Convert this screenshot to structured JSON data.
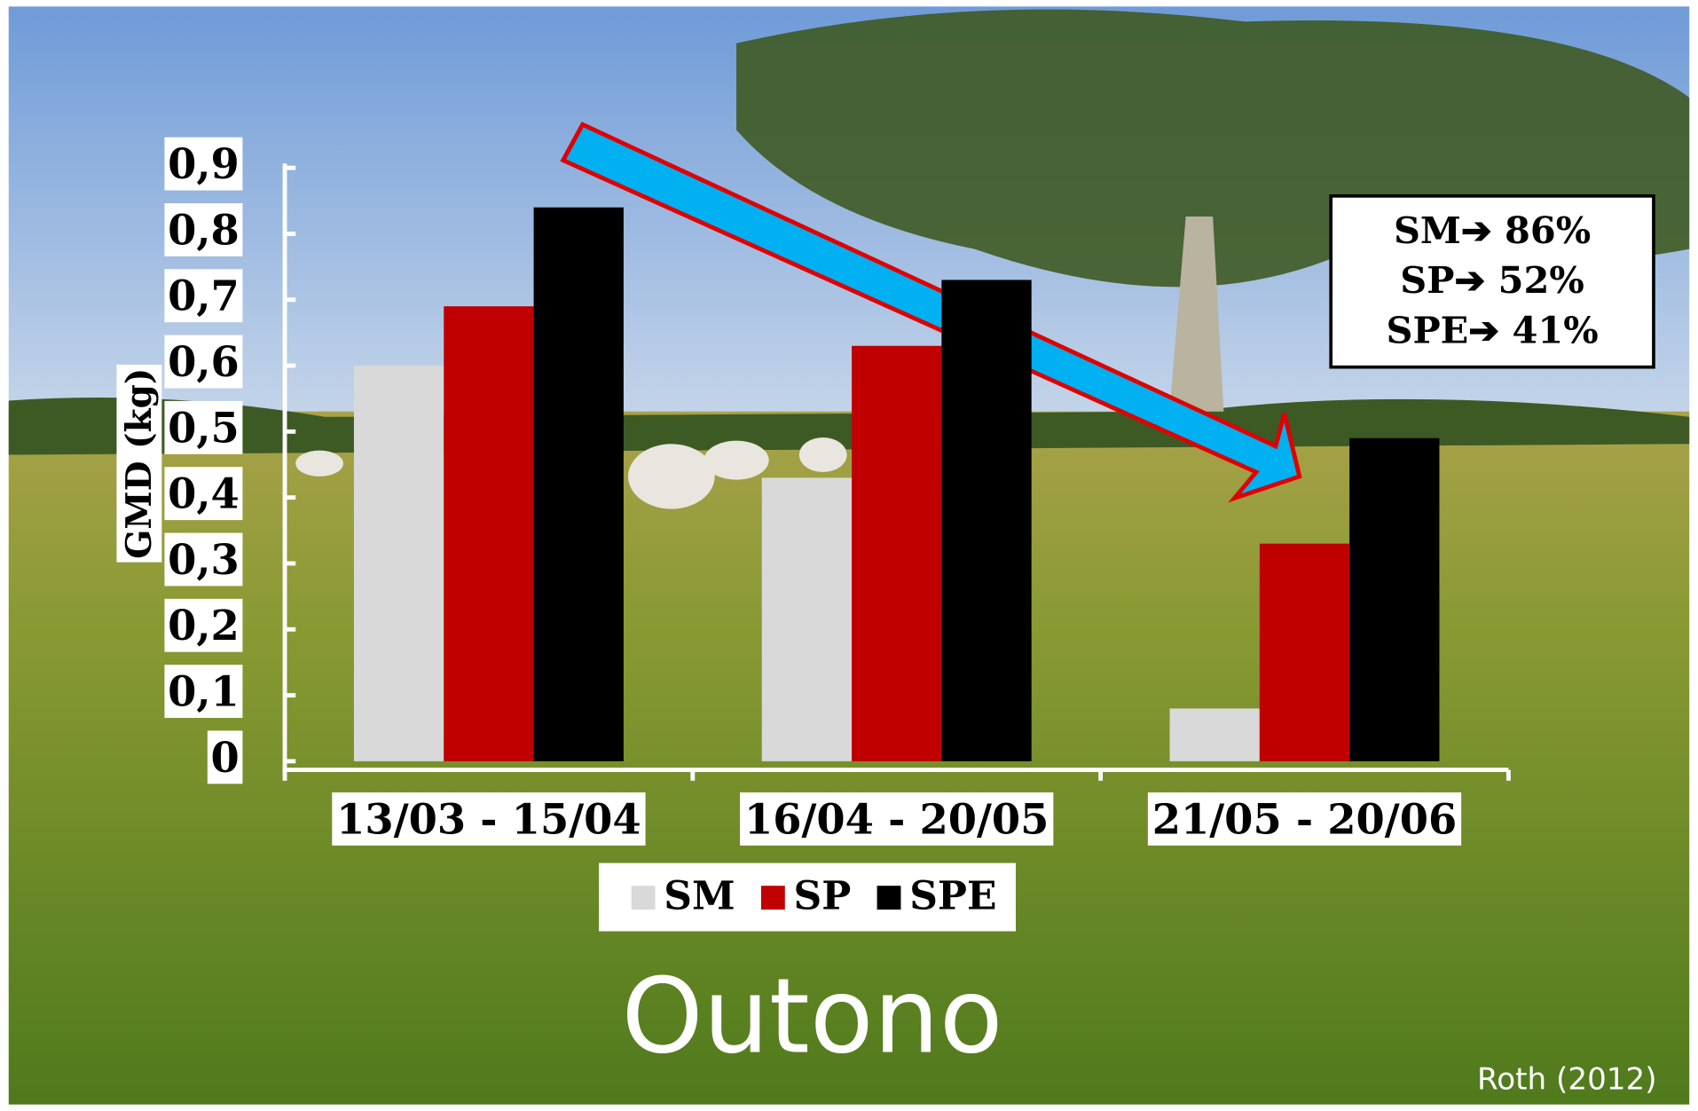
{
  "chart_data": {
    "type": "bar",
    "title": "Outono",
    "y_label": "GMD (kg)",
    "source": "Roth (2012)",
    "categories": [
      "13/03 - 15/04",
      "16/04 - 20/05",
      "21/05 - 20/06"
    ],
    "series": [
      {
        "name": "SM",
        "color": "#d9d9d9",
        "values": [
          0.6,
          0.43,
          0.08
        ]
      },
      {
        "name": "SP",
        "color": "#c00000",
        "values": [
          0.69,
          0.63,
          0.33
        ]
      },
      {
        "name": "SPE",
        "color": "#000000",
        "values": [
          0.84,
          0.73,
          0.49
        ]
      }
    ],
    "ylim": [
      0,
      0.9
    ],
    "yticks": [
      0,
      {
        "value": 0.1,
        "label": "0,1"
      },
      {
        "value": 0.2,
        "label": "0,2"
      },
      {
        "value": 0.3,
        "label": "0,3"
      },
      {
        "value": 0.4,
        "label": "0,4"
      },
      {
        "value": 0.5,
        "label": "0,5"
      },
      {
        "value": 0.6,
        "label": "0,6"
      },
      {
        "value": 0.7,
        "label": "0,7"
      },
      {
        "value": 0.8,
        "label": "0,8"
      },
      {
        "value": 0.9,
        "label": "0,9"
      }
    ],
    "annotations": [
      "SM➔ 86%",
      "SP➔ 52%",
      "SPE➔ 41%"
    ]
  }
}
